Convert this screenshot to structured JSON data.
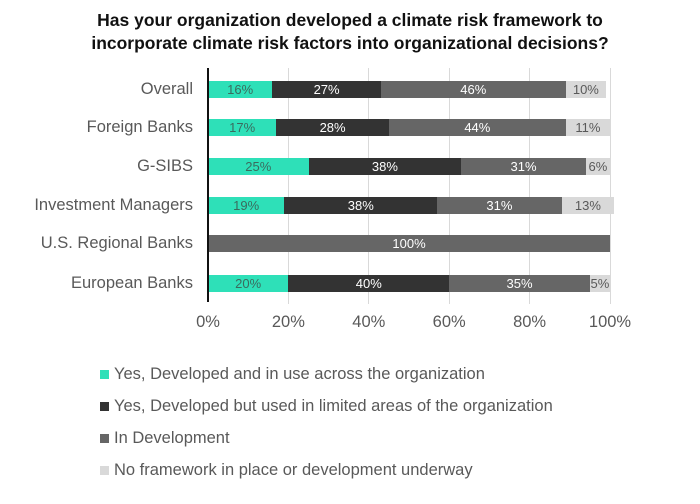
{
  "chart_data": {
    "type": "bar",
    "orientation": "horizontal",
    "stacked": true,
    "percent": true,
    "title": "Has your organization developed a climate risk framework to incorporate climate risk factors into organizational decisions?",
    "title_lines": [
      "Has your organization developed a climate risk framework to",
      "incorporate climate risk factors into organizational decisions?"
    ],
    "xlabel": "",
    "ylabel": "",
    "xlim": [
      0,
      100
    ],
    "x_ticks": [
      "0%",
      "20%",
      "40%",
      "60%",
      "80%",
      "100%"
    ],
    "grid": "vertical",
    "legend_position": "bottom",
    "categories": [
      "Overall",
      "Foreign Banks",
      "G-SIBS",
      "Investment Managers",
      "U.S. Regional Banks",
      "European Banks"
    ],
    "series": [
      {
        "name": "Yes, Developed and in use across the organization",
        "color": "#2ee0b8",
        "text_color": "#3a6b5e",
        "values": [
          16,
          17,
          25,
          19,
          0,
          20
        ]
      },
      {
        "name": "Yes, Developed but used in limited areas of the organization",
        "color": "#333333",
        "text_color": "#ffffff",
        "values": [
          27,
          28,
          38,
          38,
          0,
          40
        ]
      },
      {
        "name": "In Development",
        "color": "#666666",
        "text_color": "#ffffff",
        "values": [
          46,
          44,
          31,
          31,
          100,
          35
        ]
      },
      {
        "name": "No framework in place or development underway",
        "color": "#d9d9d9",
        "text_color": "#595959",
        "values": [
          10,
          11,
          6,
          13,
          0,
          5
        ]
      }
    ]
  }
}
